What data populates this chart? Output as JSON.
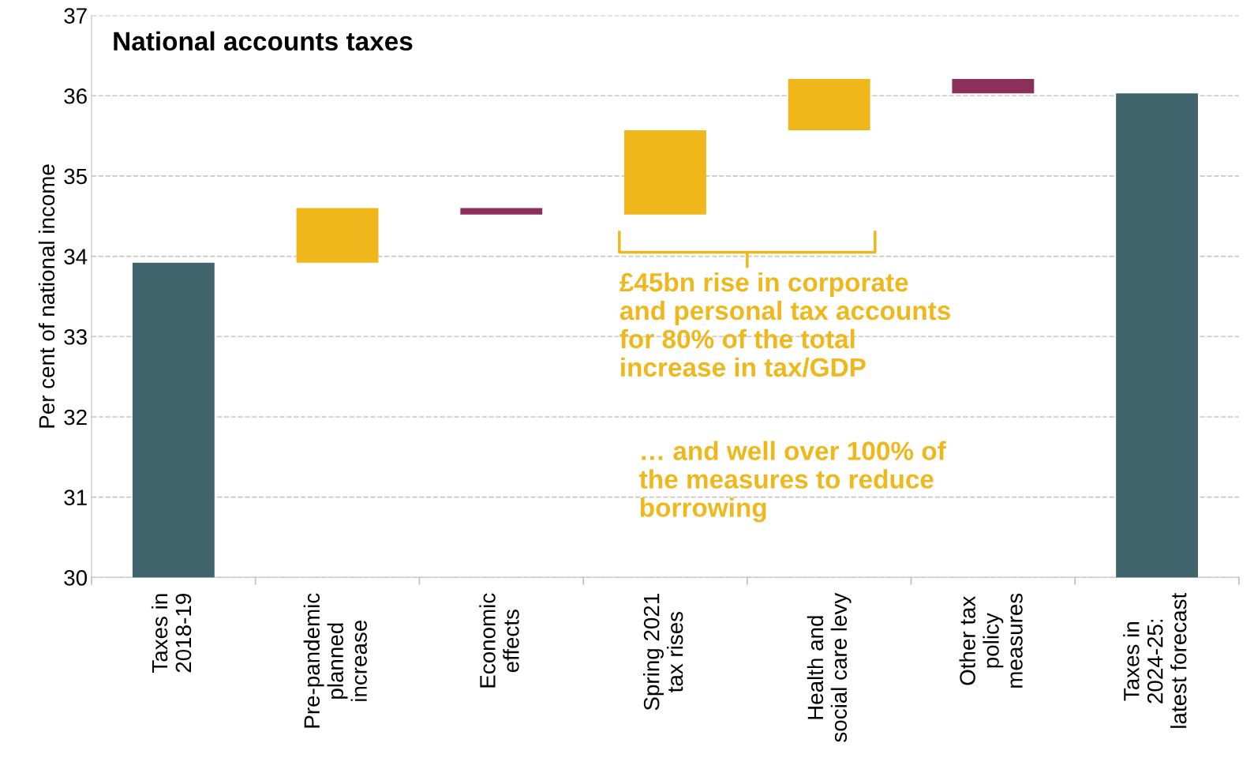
{
  "chart_data": {
    "type": "bar",
    "title": "National accounts taxes",
    "ylabel": "Per cent of national income",
    "categories": [
      "Taxes in\n2018-19",
      "Pre-pandemic\nplanned\nincrease",
      "Economic\neffects",
      "Spring 2021\ntax rises",
      "Health and\nsocial care levy",
      "Other tax\npolicy\nmeasures",
      "Taxes in\n2024-25:\nlatest forecast"
    ],
    "values": [
      33.92,
      0.68,
      -0.08,
      1.05,
      0.64,
      -0.18,
      36.03
    ],
    "base": [
      null,
      33.92,
      34.6,
      34.52,
      35.57,
      36.21,
      null
    ],
    "colors": [
      "#3f646b",
      "#f0b71b",
      "#8b2f5c",
      "#f0b71b",
      "#f0b71b",
      "#8b2f5c",
      "#3f646b"
    ],
    "ylim": [
      30,
      37
    ],
    "yticks": [
      30,
      31,
      32,
      33,
      34,
      35,
      36,
      37
    ],
    "grid": "y",
    "annotations": [
      "£45bn rise in corporate\nand personal tax accounts\nfor 80% of the total\nincrease in tax/GDP",
      "… and well over 100% of\nthe measures to reduce\nborrowing"
    ]
  }
}
